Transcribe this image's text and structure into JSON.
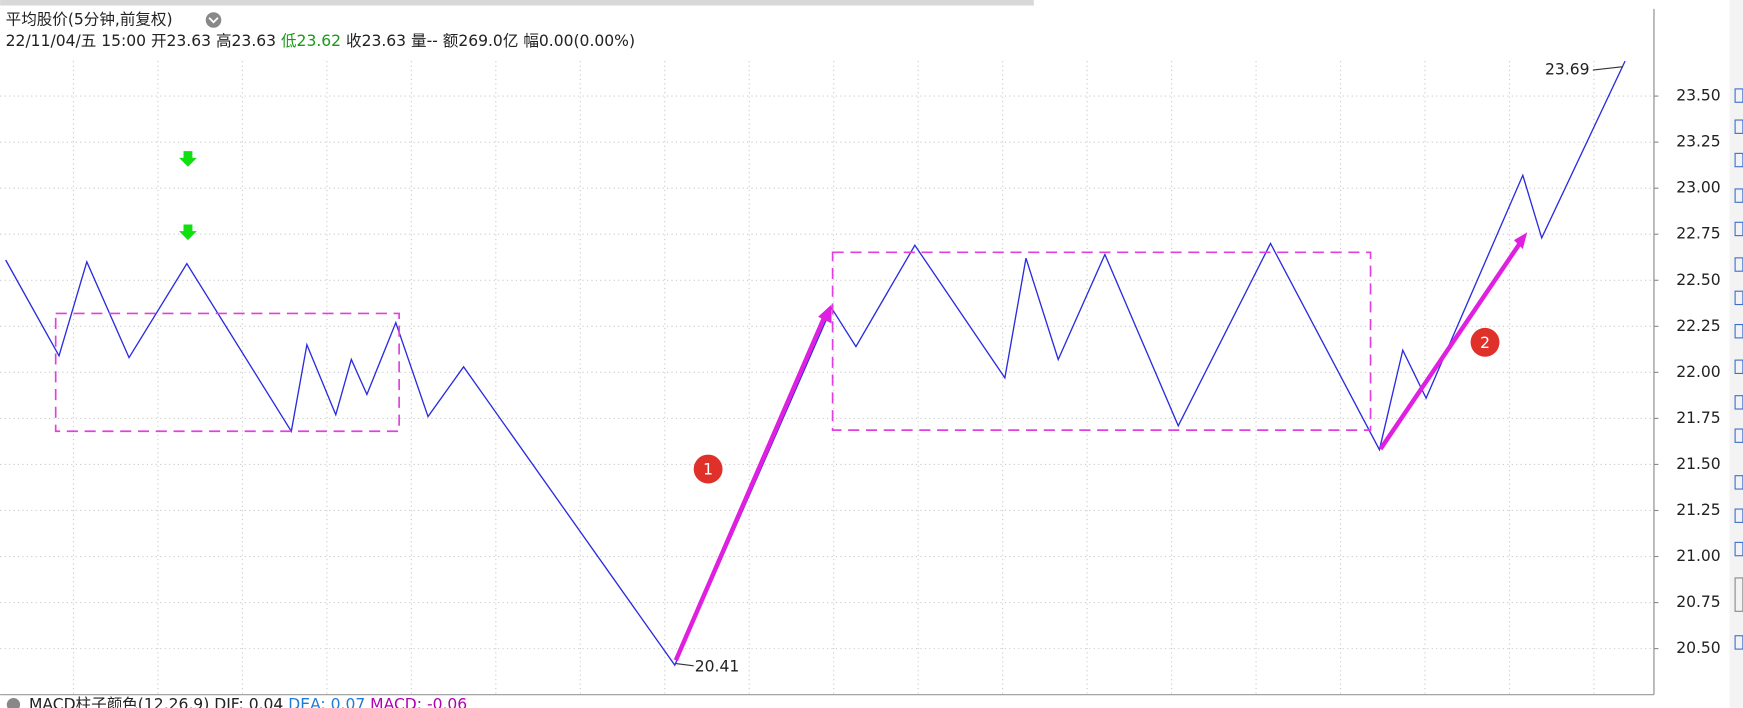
{
  "header": {
    "title": "平均股价(5分钟,前复权)",
    "info": [
      "22/11/04/五 15:00",
      "开23.63",
      "高23.63",
      "低23.62",
      "收23.63",
      "量--",
      "额269.0亿",
      "幅0.00(0.00%)"
    ]
  },
  "chart_data": {
    "type": "line",
    "x": [
      5,
      53,
      78,
      116,
      168,
      262,
      276,
      302,
      316,
      330,
      356,
      385,
      417,
      607,
      748,
      770,
      823,
      904,
      923,
      952,
      994,
      1060,
      1143,
      1241,
      1262,
      1283,
      1370,
      1387,
      1462
    ],
    "series": [
      {
        "color": "#2b2be0",
        "values": [
          22.61,
          22.09,
          22.6,
          22.08,
          22.59,
          21.68,
          22.15,
          21.77,
          22.07,
          21.88,
          22.27,
          21.76,
          22.03,
          20.41,
          22.35,
          22.14,
          22.69,
          21.97,
          22.62,
          22.07,
          22.64,
          21.71,
          22.7,
          21.58,
          22.12,
          21.86,
          23.07,
          22.73,
          23.69
        ]
      }
    ],
    "xlim": [
      0,
      1488
    ],
    "ylim": [
      20.25,
      23.72
    ],
    "yticks": [
      {
        "value": 20.5,
        "label": "20.50"
      },
      {
        "value": 20.75,
        "label": "20.75"
      },
      {
        "value": 21,
        "label": "21.00"
      },
      {
        "value": 21.25,
        "label": "21.25"
      },
      {
        "value": 21.5,
        "label": "21.50"
      },
      {
        "value": 21.75,
        "label": "21.75"
      },
      {
        "value": 22,
        "label": "22.00"
      },
      {
        "value": 22.25,
        "label": "22.25"
      },
      {
        "value": 22.5,
        "label": "22.50"
      },
      {
        "value": 22.75,
        "label": "22.75"
      },
      {
        "value": 23,
        "label": "23.00"
      },
      {
        "value": 23.25,
        "label": "23.25"
      },
      {
        "value": 23.5,
        "label": "23.50"
      }
    ],
    "grid": true,
    "annotations": [
      "23.69",
      "20.41",
      "1",
      "2"
    ]
  },
  "footer": [
    "MACD柱子颜色(12,26,9)",
    "DIF: 0.04",
    "DEA: 0.07",
    "MACD: -0.06"
  ]
}
